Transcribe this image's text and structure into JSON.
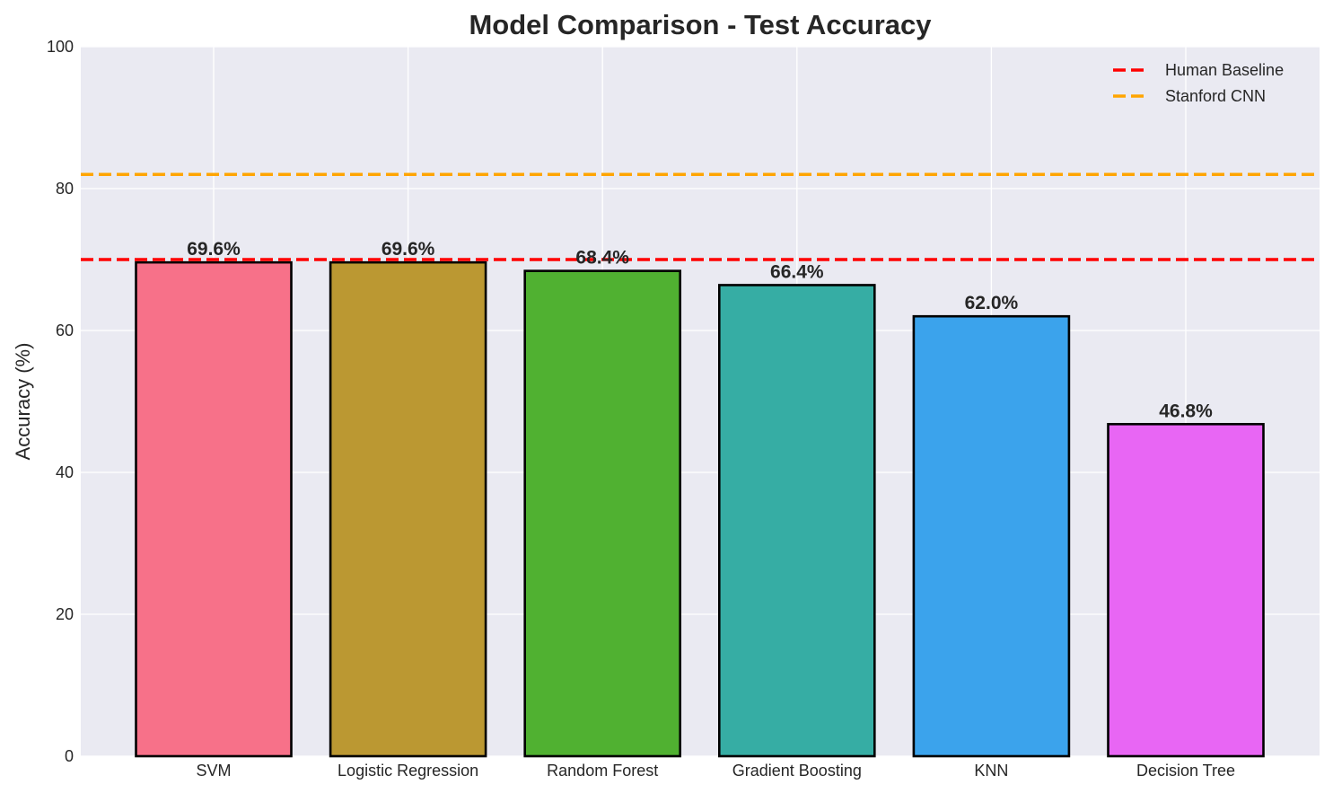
{
  "chart_data": {
    "type": "bar",
    "title": "Model Comparison - Test Accuracy",
    "xlabel": "",
    "ylabel": "Accuracy (%)",
    "ylim": [
      0,
      100
    ],
    "yticks": [
      0,
      20,
      40,
      60,
      80,
      100
    ],
    "categories": [
      "SVM",
      "Logistic Regression",
      "Random Forest",
      "Gradient Boosting",
      "KNN",
      "Decision Tree"
    ],
    "values": [
      69.6,
      69.6,
      68.4,
      66.4,
      62.0,
      46.8
    ],
    "value_labels": [
      "69.6%",
      "69.6%",
      "68.4%",
      "66.4%",
      "62.0%",
      "46.8%"
    ],
    "bar_colors": [
      "#f77189",
      "#bb9832",
      "#50b131",
      "#36ada4",
      "#3ba3ec",
      "#e866f4"
    ],
    "reference_lines": [
      {
        "name": "Human Baseline",
        "value": 70,
        "color": "#ff0000",
        "style": "dashed"
      },
      {
        "name": "Stanford CNN",
        "value": 82,
        "color": "#ffa500",
        "style": "dashed"
      }
    ],
    "grid": true,
    "background": "#eaeaf2",
    "legend_position": "top-right"
  }
}
